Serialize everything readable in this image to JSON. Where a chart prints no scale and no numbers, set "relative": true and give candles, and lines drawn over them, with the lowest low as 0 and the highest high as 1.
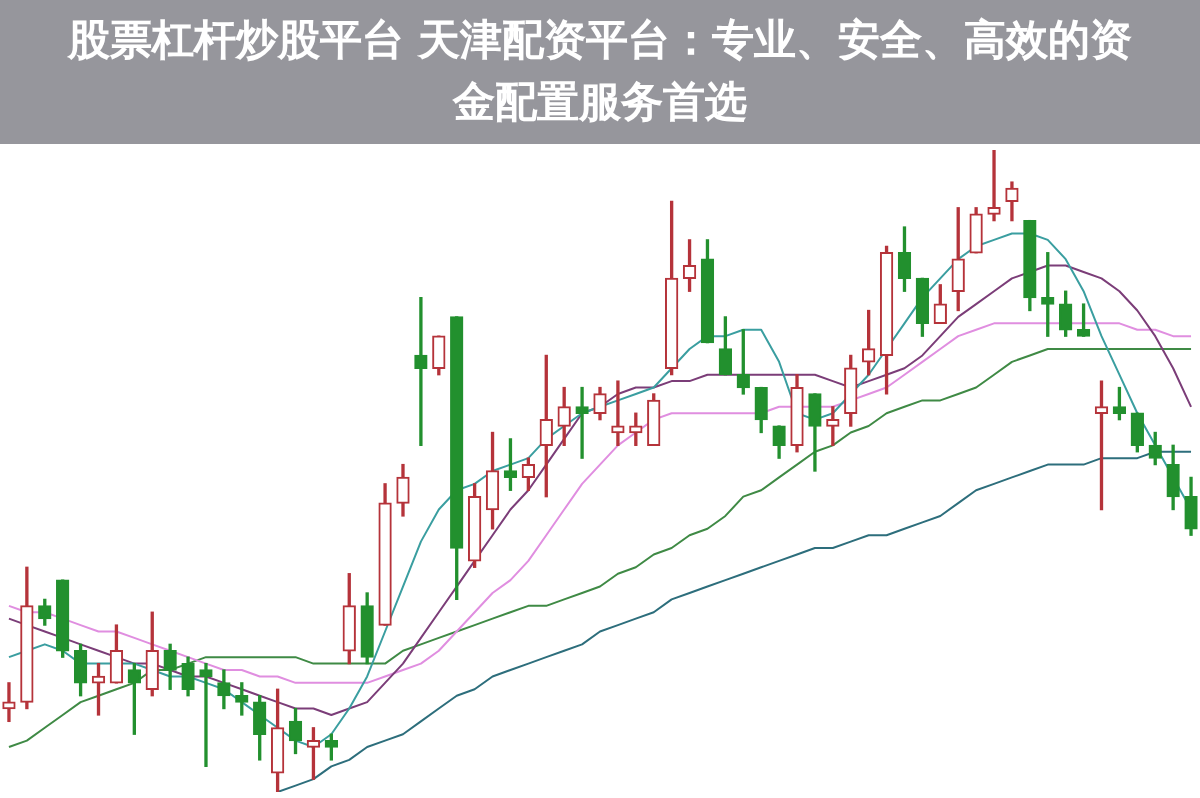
{
  "chart_data": {
    "type": "candlestick",
    "title": "股票杠杆炒股平台 天津配资平台：专业、安全、高效的资金配置服务首选",
    "relative": true,
    "categories": [
      null,
      null,
      null,
      null,
      null,
      null,
      null,
      null,
      null,
      null,
      null,
      null,
      null,
      null,
      null,
      null,
      null,
      null,
      null,
      null,
      null,
      null,
      null,
      null,
      null,
      null,
      null,
      null,
      null,
      null,
      null,
      null,
      null,
      null,
      null,
      null,
      null,
      null,
      null,
      null,
      null,
      null,
      null,
      null,
      null,
      null,
      null,
      null,
      null,
      null,
      null,
      null,
      null,
      null,
      null,
      null,
      null,
      null,
      null,
      null,
      null,
      null,
      null,
      null,
      null,
      null,
      null
    ],
    "ohlc": [
      [
        0.13,
        0.17,
        0.11,
        0.14
      ],
      [
        0.14,
        0.35,
        0.13,
        0.29
      ],
      [
        0.29,
        0.3,
        0.26,
        0.27
      ],
      [
        0.33,
        0.33,
        0.21,
        0.22
      ],
      [
        0.22,
        0.23,
        0.15,
        0.17
      ],
      [
        0.17,
        0.2,
        0.12,
        0.18
      ],
      [
        0.17,
        0.26,
        0.17,
        0.22
      ],
      [
        0.19,
        0.2,
        0.09,
        0.17
      ],
      [
        0.16,
        0.28,
        0.15,
        0.22
      ],
      [
        0.22,
        0.23,
        0.16,
        0.19
      ],
      [
        0.2,
        0.21,
        0.15,
        0.16
      ],
      [
        0.19,
        0.2,
        0.04,
        0.18
      ],
      [
        0.17,
        0.19,
        0.13,
        0.15
      ],
      [
        0.15,
        0.17,
        0.12,
        0.14
      ],
      [
        0.14,
        0.15,
        0.05,
        0.09
      ],
      [
        0.03,
        0.16,
        0.0,
        0.1
      ],
      [
        0.11,
        0.13,
        0.06,
        0.08
      ],
      [
        0.07,
        0.1,
        0.02,
        0.08
      ],
      [
        0.08,
        0.09,
        0.05,
        0.07
      ],
      [
        0.22,
        0.34,
        0.2,
        0.29
      ],
      [
        0.29,
        0.31,
        0.2,
        0.21
      ],
      [
        0.26,
        0.48,
        0.26,
        0.45
      ],
      [
        0.45,
        0.51,
        0.43,
        0.49
      ],
      [
        0.68,
        0.77,
        0.54,
        0.66
      ],
      [
        0.66,
        0.71,
        0.65,
        0.71
      ],
      [
        0.74,
        0.74,
        0.3,
        0.38
      ],
      [
        0.36,
        0.48,
        0.35,
        0.46
      ],
      [
        0.44,
        0.56,
        0.41,
        0.5
      ],
      [
        0.5,
        0.55,
        0.47,
        0.49
      ],
      [
        0.49,
        0.52,
        0.47,
        0.51
      ],
      [
        0.54,
        0.68,
        0.46,
        0.58
      ],
      [
        0.57,
        0.63,
        0.54,
        0.6
      ],
      [
        0.6,
        0.63,
        0.52,
        0.59
      ],
      [
        0.59,
        0.63,
        0.58,
        0.62
      ],
      [
        0.56,
        0.64,
        0.54,
        0.57
      ],
      [
        0.56,
        0.59,
        0.54,
        0.57
      ],
      [
        0.54,
        0.62,
        0.54,
        0.61
      ],
      [
        0.66,
        0.92,
        0.65,
        0.8
      ],
      [
        0.8,
        0.86,
        0.78,
        0.82
      ],
      [
        0.83,
        0.86,
        0.7,
        0.7
      ],
      [
        0.69,
        0.74,
        0.65,
        0.65
      ],
      [
        0.65,
        0.72,
        0.62,
        0.63
      ],
      [
        0.63,
        0.63,
        0.56,
        0.58
      ],
      [
        0.57,
        0.57,
        0.52,
        0.54
      ],
      [
        0.54,
        0.65,
        0.53,
        0.63
      ],
      [
        0.62,
        0.62,
        0.5,
        0.57
      ],
      [
        0.57,
        0.6,
        0.54,
        0.58
      ],
      [
        0.59,
        0.68,
        0.57,
        0.66
      ],
      [
        0.67,
        0.75,
        0.65,
        0.69
      ],
      [
        0.68,
        0.85,
        0.62,
        0.84
      ],
      [
        0.84,
        0.88,
        0.78,
        0.8
      ],
      [
        0.8,
        0.8,
        0.71,
        0.73
      ],
      [
        0.73,
        0.79,
        0.73,
        0.76
      ],
      [
        0.78,
        0.91,
        0.75,
        0.83
      ],
      [
        0.84,
        0.91,
        0.84,
        0.9
      ],
      [
        0.9,
        1.0,
        0.89,
        0.91
      ],
      [
        0.92,
        0.95,
        0.89,
        0.94
      ],
      [
        0.89,
        0.89,
        0.75,
        0.77
      ],
      [
        0.77,
        0.84,
        0.71,
        0.76
      ],
      [
        0.76,
        0.78,
        0.71,
        0.72
      ],
      [
        0.72,
        0.76,
        0.71,
        0.71
      ],
      [
        0.59,
        0.64,
        0.44,
        0.6
      ],
      [
        0.6,
        0.63,
        0.58,
        0.59
      ],
      [
        0.59,
        0.59,
        0.53,
        0.54
      ],
      [
        0.54,
        0.56,
        0.51,
        0.52
      ],
      [
        0.51,
        0.54,
        0.44,
        0.46
      ],
      [
        0.46,
        0.49,
        0.4,
        0.41
      ]
    ],
    "colors": [
      "#b5333a",
      "#b5333a",
      "#22902e",
      "#22902e",
      "#22902e",
      "#b5333a",
      "#b5333a",
      "#22902e",
      "#b5333a",
      "#22902e",
      "#22902e",
      "#22902e",
      "#22902e",
      "#22902e",
      "#22902e",
      "#b5333a",
      "#22902e",
      "#b5333a",
      "#22902e",
      "#b5333a",
      "#22902e",
      "#b5333a",
      "#b5333a",
      "#22902e",
      "#b5333a",
      "#22902e",
      "#b5333a",
      "#b5333a",
      "#22902e",
      "#b5333a",
      "#b5333a",
      "#b5333a",
      "#22902e",
      "#b5333a",
      "#b5333a",
      "#b5333a",
      "#b5333a",
      "#b5333a",
      "#b5333a",
      "#22902e",
      "#22902e",
      "#22902e",
      "#22902e",
      "#22902e",
      "#b5333a",
      "#22902e",
      "#b5333a",
      "#b5333a",
      "#b5333a",
      "#b5333a",
      "#22902e",
      "#22902e",
      "#b5333a",
      "#b5333a",
      "#b5333a",
      "#b5333a",
      "#b5333a",
      "#22902e",
      "#22902e",
      "#22902e",
      "#22902e",
      "#b5333a",
      "#22902e",
      "#22902e",
      "#22902e",
      "#22902e",
      "#22902e"
    ],
    "series": [
      {
        "type": "line",
        "color": "#3a9ea0",
        "values": [
          0.21,
          0.22,
          0.23,
          0.22,
          0.2,
          0.2,
          0.2,
          0.2,
          0.19,
          0.18,
          0.18,
          0.17,
          0.16,
          0.14,
          0.12,
          0.1,
          0.08,
          0.07,
          0.09,
          0.13,
          0.18,
          0.25,
          0.32,
          0.39,
          0.44,
          0.47,
          0.48,
          0.5,
          0.51,
          0.52,
          0.55,
          0.57,
          0.59,
          0.6,
          0.61,
          0.62,
          0.63,
          0.66,
          0.69,
          0.71,
          0.71,
          0.72,
          0.72,
          0.67,
          0.59,
          0.58,
          0.59,
          0.62,
          0.65,
          0.69,
          0.73,
          0.77,
          0.8,
          0.83,
          0.85,
          0.86,
          0.87,
          0.87,
          0.86,
          0.83,
          0.78,
          0.71,
          0.65,
          0.59,
          0.54,
          0.49,
          0.44
        ]
      },
      {
        "type": "line",
        "color": "#7b3d78",
        "values": [
          0.27,
          0.26,
          0.25,
          0.24,
          0.23,
          0.22,
          0.21,
          0.2,
          0.2,
          0.19,
          0.18,
          0.18,
          0.17,
          0.16,
          0.15,
          0.14,
          0.13,
          0.13,
          0.12,
          0.13,
          0.14,
          0.17,
          0.2,
          0.24,
          0.28,
          0.32,
          0.36,
          0.4,
          0.44,
          0.47,
          0.51,
          0.55,
          0.59,
          0.6,
          0.62,
          0.63,
          0.63,
          0.64,
          0.64,
          0.65,
          0.65,
          0.65,
          0.65,
          0.65,
          0.65,
          0.65,
          0.64,
          0.63,
          0.64,
          0.65,
          0.66,
          0.68,
          0.71,
          0.74,
          0.76,
          0.78,
          0.8,
          0.81,
          0.82,
          0.82,
          0.81,
          0.8,
          0.78,
          0.75,
          0.71,
          0.66,
          0.6
        ]
      },
      {
        "type": "line",
        "color": "#e08ee0",
        "values": [
          0.29,
          0.28,
          0.28,
          0.27,
          0.26,
          0.25,
          0.25,
          0.24,
          0.23,
          0.22,
          0.21,
          0.2,
          0.19,
          0.19,
          0.18,
          0.18,
          0.17,
          0.17,
          0.17,
          0.17,
          0.17,
          0.18,
          0.19,
          0.2,
          0.22,
          0.25,
          0.28,
          0.31,
          0.33,
          0.36,
          0.4,
          0.44,
          0.48,
          0.51,
          0.54,
          0.56,
          0.58,
          0.59,
          0.59,
          0.59,
          0.59,
          0.59,
          0.59,
          0.6,
          0.6,
          0.6,
          0.6,
          0.61,
          0.62,
          0.63,
          0.65,
          0.67,
          0.69,
          0.71,
          0.72,
          0.73,
          0.73,
          0.73,
          0.73,
          0.73,
          0.73,
          0.73,
          0.73,
          0.72,
          0.72,
          0.71,
          0.71
        ]
      },
      {
        "type": "line",
        "color": "#3f8a45",
        "values": [
          0.07,
          0.08,
          0.1,
          0.12,
          0.14,
          0.15,
          0.16,
          0.17,
          0.19,
          0.19,
          0.2,
          0.21,
          0.21,
          0.21,
          0.21,
          0.21,
          0.21,
          0.2,
          0.2,
          0.2,
          0.2,
          0.2,
          0.22,
          0.23,
          0.24,
          0.25,
          0.26,
          0.27,
          0.28,
          0.29,
          0.29,
          0.3,
          0.31,
          0.32,
          0.34,
          0.35,
          0.37,
          0.38,
          0.4,
          0.41,
          0.43,
          0.46,
          0.47,
          0.49,
          0.51,
          0.53,
          0.54,
          0.56,
          0.57,
          0.59,
          0.6,
          0.61,
          0.61,
          0.62,
          0.63,
          0.65,
          0.67,
          0.68,
          0.69,
          0.69,
          0.69,
          0.69,
          0.69,
          0.69,
          0.69,
          0.69,
          0.69
        ]
      },
      {
        "type": "line",
        "color": "#2d6e7c",
        "values": [
          null,
          null,
          null,
          null,
          null,
          null,
          null,
          null,
          null,
          null,
          null,
          null,
          null,
          null,
          null,
          0.0,
          0.01,
          0.02,
          0.04,
          0.05,
          0.07,
          0.08,
          0.09,
          0.11,
          0.13,
          0.15,
          0.16,
          0.18,
          0.19,
          0.2,
          0.21,
          0.22,
          0.23,
          0.25,
          0.26,
          0.27,
          0.28,
          0.3,
          0.31,
          0.32,
          0.33,
          0.34,
          0.35,
          0.36,
          0.37,
          0.38,
          0.38,
          0.39,
          0.4,
          0.4,
          0.41,
          0.42,
          0.43,
          0.45,
          0.47,
          0.48,
          0.49,
          0.5,
          0.51,
          0.51,
          0.51,
          0.52,
          0.52,
          0.52,
          0.53,
          0.53,
          0.53
        ]
      }
    ]
  }
}
